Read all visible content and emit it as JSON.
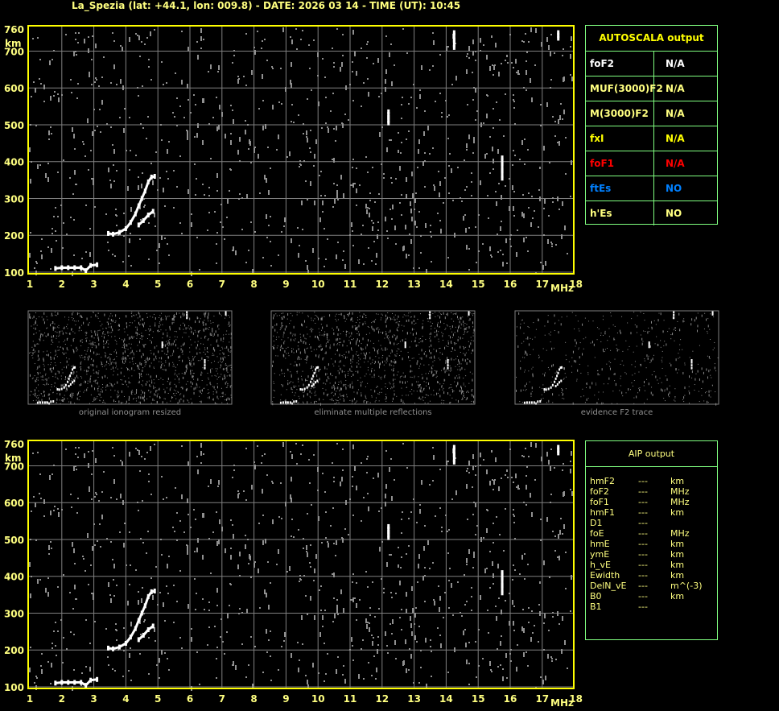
{
  "header": {
    "title": "La_Spezia (lat: +44.1, lon: 009.8) - DATE: 2026 03 14 - TIME (UT): 10:45"
  },
  "chart_data": [
    {
      "type": "scatter",
      "name": "ionogram",
      "xlabel": "MHz",
      "ylabel": "km",
      "xlim": [
        1,
        18
      ],
      "ylim": [
        100,
        760
      ],
      "x_ticks": [
        "1",
        "2",
        "3",
        "4",
        "5",
        "6",
        "7",
        "8",
        "9",
        "10",
        "11",
        "12",
        "13",
        "14",
        "15",
        "16",
        "17",
        "18"
      ],
      "y_ticks": [
        "760",
        "700",
        "600",
        "500",
        "400",
        "300",
        "200",
        "100"
      ],
      "grid": true,
      "colors": {
        "frame": "#ffff00",
        "grid": "#808080",
        "echo": "#ffffff",
        "noise": "#909090"
      },
      "traces": [
        {
          "points": [
            [
              3.45,
              205
            ],
            [
              3.6,
              203
            ],
            [
              3.8,
              208
            ],
            [
              4.0,
              218
            ],
            [
              4.15,
              235
            ],
            [
              4.3,
              258
            ],
            [
              4.4,
              280
            ],
            [
              4.5,
              300
            ],
            [
              4.6,
              320
            ],
            [
              4.7,
              345
            ],
            [
              4.8,
              358
            ],
            [
              4.9,
              360
            ]
          ]
        },
        {
          "points": [
            [
              4.4,
              228
            ],
            [
              4.55,
              240
            ],
            [
              4.7,
              255
            ],
            [
              4.85,
              265
            ]
          ]
        },
        {
          "points": [
            [
              1.8,
              110
            ],
            [
              2.0,
              112
            ],
            [
              2.2,
              112
            ],
            [
              2.4,
              112
            ],
            [
              2.6,
              112
            ],
            [
              2.75,
              104
            ],
            [
              2.9,
              118
            ],
            [
              3.1,
              120
            ]
          ]
        },
        {
          "points": [
            [
              12.2,
              505
            ],
            [
              12.2,
              520
            ],
            [
              12.2,
              535
            ]
          ]
        },
        {
          "points": [
            [
              14.25,
              710
            ],
            [
              14.25,
              730
            ],
            [
              14.25,
              750
            ]
          ]
        },
        {
          "points": [
            [
              15.75,
              355
            ],
            [
              15.75,
              375
            ],
            [
              15.75,
              395
            ],
            [
              15.75,
              410
            ]
          ]
        },
        {
          "points": [
            [
              17.5,
              735
            ],
            [
              17.5,
              750
            ]
          ]
        }
      ]
    }
  ],
  "thumbnails": [
    {
      "caption": "original ionogram resized",
      "noise": 1.0
    },
    {
      "caption": "eliminate multiple reflections",
      "noise": 0.9
    },
    {
      "caption": "evidence F2 trace",
      "noise": 0.35
    }
  ],
  "autoscala": {
    "title": "AUTOSCALA output",
    "rows": [
      {
        "key": "foF2",
        "value": "N/A",
        "color": "#ffffff"
      },
      {
        "key": "MUF(3000)F2",
        "value": "N/A",
        "color": "#ffff80"
      },
      {
        "key": "M(3000)F2",
        "value": "N/A",
        "color": "#ffff80"
      },
      {
        "key": "fxI",
        "value": "N/A",
        "color": "#ffff00"
      },
      {
        "key": "foF1",
        "value": "N/A",
        "color": "#ff0000"
      },
      {
        "key": "ftEs",
        "value": "NO",
        "color": "#0080ff"
      },
      {
        "key": "h'Es",
        "value": "NO",
        "color": "#ffff80"
      }
    ]
  },
  "aip": {
    "title": "AIP output",
    "rows": [
      {
        "key": "hmF2",
        "value": "---",
        "unit": "km"
      },
      {
        "key": "foF2",
        "value": "---",
        "unit": "MHz"
      },
      {
        "key": "foF1",
        "value": "---",
        "unit": "MHz"
      },
      {
        "key": "hmF1",
        "value": "---",
        "unit": "km"
      },
      {
        "key": "D1",
        "value": "---",
        "unit": ""
      },
      {
        "key": "foE",
        "value": "---",
        "unit": "MHz"
      },
      {
        "key": "hmE",
        "value": "---",
        "unit": "km"
      },
      {
        "key": "ymE",
        "value": "---",
        "unit": "km"
      },
      {
        "key": "h_vE",
        "value": "---",
        "unit": "km"
      },
      {
        "key": "Ewidth",
        "value": "---",
        "unit": "km"
      },
      {
        "key": "DelN_vE",
        "value": "---",
        "unit": "m^(-3)"
      },
      {
        "key": "B0",
        "value": "---",
        "unit": "km"
      },
      {
        "key": "B1",
        "value": "---",
        "unit": ""
      }
    ]
  }
}
